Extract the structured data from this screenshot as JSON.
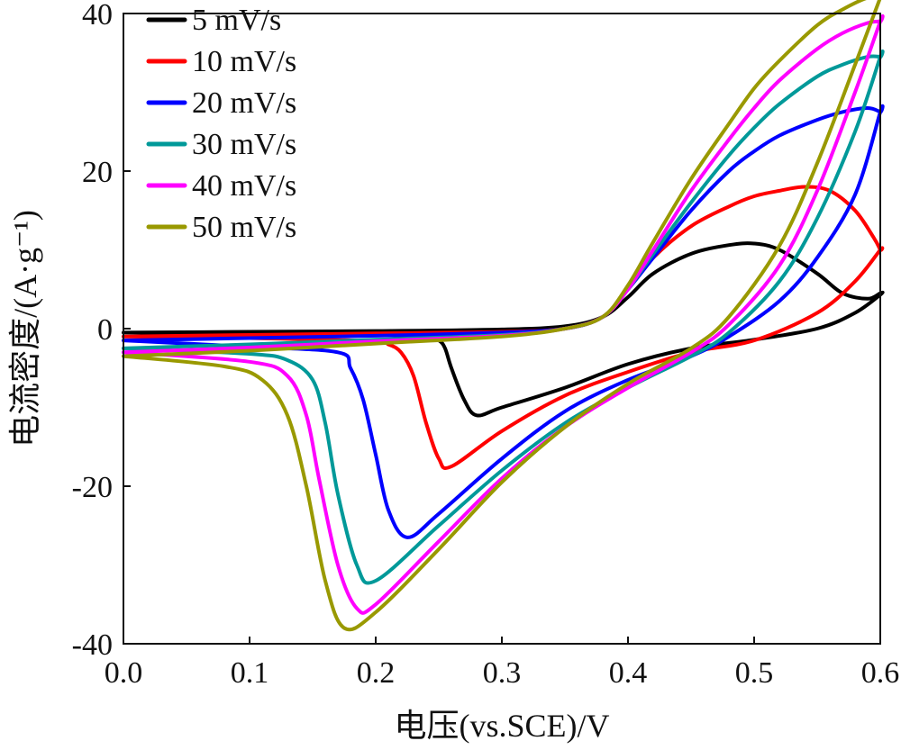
{
  "chart_data": {
    "type": "line",
    "title": "",
    "xlabel": "电压(vs.SCE)/V",
    "ylabel": "电流密度/(A·g⁻¹)",
    "xlim": [
      0.0,
      0.6
    ],
    "ylim": [
      -40,
      40
    ],
    "x_ticks": [
      "0.0",
      "0.1",
      "0.2",
      "0.3",
      "0.4",
      "0.5",
      "0.6"
    ],
    "y_ticks": [
      "-40",
      "-20",
      "0",
      "20",
      "40"
    ],
    "grid": false,
    "legend_position": "top-left",
    "series": [
      {
        "name": "5 mV/s",
        "color": "#000000",
        "x": [
          0.0,
          0.1,
          0.2,
          0.3,
          0.35,
          0.38,
          0.4,
          0.42,
          0.45,
          0.48,
          0.5,
          0.52,
          0.55,
          0.57,
          0.59,
          0.6,
          0.6,
          0.58,
          0.55,
          0.5,
          0.45,
          0.4,
          0.35,
          0.3,
          0.28,
          0.27,
          0.26,
          0.255,
          0.25,
          0.24,
          0.2,
          0.1,
          0.0
        ],
        "y": [
          -0.5,
          -0.4,
          -0.3,
          -0.1,
          0.3,
          1.5,
          4.0,
          7.0,
          9.5,
          10.6,
          10.8,
          10.0,
          7.0,
          4.5,
          3.8,
          4.5,
          4.3,
          2.0,
          0.0,
          -1.4,
          -2.5,
          -4.5,
          -7.5,
          -10.0,
          -11.0,
          -9.0,
          -5.0,
          -2.5,
          -1.5,
          -1.0,
          -0.8,
          -0.6,
          -0.5
        ]
      },
      {
        "name": "10 mV/s",
        "color": "#ff0000",
        "x": [
          0.0,
          0.1,
          0.2,
          0.3,
          0.35,
          0.38,
          0.4,
          0.42,
          0.45,
          0.48,
          0.5,
          0.52,
          0.54,
          0.56,
          0.58,
          0.595,
          0.6,
          0.6,
          0.58,
          0.55,
          0.5,
          0.45,
          0.4,
          0.35,
          0.3,
          0.26,
          0.25,
          0.24,
          0.23,
          0.22,
          0.21,
          0.2,
          0.1,
          0.0
        ],
        "y": [
          -1.0,
          -0.8,
          -0.6,
          -0.4,
          0.0,
          1.5,
          5.0,
          9.0,
          13.0,
          15.5,
          16.8,
          17.5,
          18.0,
          17.5,
          15.0,
          11.5,
          10.0,
          10.0,
          6.0,
          2.0,
          -1.5,
          -3.0,
          -5.5,
          -8.5,
          -13.0,
          -17.5,
          -16.5,
          -12.0,
          -6.0,
          -3.0,
          -2.0,
          -1.6,
          -1.2,
          -1.0
        ]
      },
      {
        "name": "20 mV/s",
        "color": "#0000ff",
        "x": [
          0.0,
          0.1,
          0.2,
          0.3,
          0.35,
          0.38,
          0.4,
          0.42,
          0.45,
          0.48,
          0.5,
          0.52,
          0.55,
          0.57,
          0.59,
          0.6,
          0.6,
          0.58,
          0.55,
          0.52,
          0.48,
          0.45,
          0.4,
          0.35,
          0.3,
          0.25,
          0.225,
          0.21,
          0.2,
          0.19,
          0.18,
          0.17,
          0.1,
          0.0
        ],
        "y": [
          -1.5,
          -1.2,
          -0.9,
          -0.5,
          0.0,
          1.5,
          5.0,
          9.0,
          15.0,
          20.0,
          22.5,
          24.5,
          26.5,
          27.5,
          28.0,
          27.5,
          27.5,
          17.0,
          9.0,
          3.5,
          -1.0,
          -3.5,
          -6.5,
          -10.5,
          -16.5,
          -23.5,
          -26.5,
          -23.0,
          -16.0,
          -9.0,
          -5.0,
          -3.0,
          -2.3,
          -1.5
        ]
      },
      {
        "name": "30 mV/s",
        "color": "#009999",
        "x": [
          0.0,
          0.1,
          0.2,
          0.3,
          0.35,
          0.38,
          0.4,
          0.42,
          0.45,
          0.48,
          0.5,
          0.52,
          0.55,
          0.57,
          0.59,
          0.6,
          0.6,
          0.58,
          0.55,
          0.52,
          0.48,
          0.45,
          0.4,
          0.35,
          0.3,
          0.25,
          0.2,
          0.185,
          0.17,
          0.16,
          0.15,
          0.13,
          0.1,
          0.0
        ],
        "y": [
          -2.5,
          -2.0,
          -1.4,
          -0.8,
          0.0,
          1.5,
          5.0,
          9.5,
          16.0,
          22.0,
          25.5,
          28.5,
          32.0,
          33.5,
          34.5,
          34.5,
          34.5,
          25.0,
          14.0,
          6.0,
          -0.5,
          -3.5,
          -7.5,
          -12.0,
          -18.0,
          -25.0,
          -32.0,
          -30.0,
          -21.0,
          -12.0,
          -6.5,
          -4.0,
          -3.2,
          -2.5
        ]
      },
      {
        "name": "40 mV/s",
        "color": "#ff00ff",
        "x": [
          0.0,
          0.1,
          0.2,
          0.3,
          0.35,
          0.38,
          0.4,
          0.42,
          0.45,
          0.48,
          0.5,
          0.52,
          0.55,
          0.57,
          0.59,
          0.6,
          0.6,
          0.58,
          0.55,
          0.52,
          0.48,
          0.45,
          0.4,
          0.35,
          0.3,
          0.25,
          0.2,
          0.185,
          0.17,
          0.155,
          0.145,
          0.13,
          0.1,
          0.0
        ],
        "y": [
          -3.0,
          -2.4,
          -1.6,
          -0.9,
          0.0,
          1.5,
          5.0,
          10.0,
          17.5,
          24.0,
          28.0,
          31.5,
          35.5,
          37.5,
          38.8,
          39.0,
          39.0,
          30.0,
          17.5,
          8.0,
          0.5,
          -3.0,
          -7.5,
          -12.5,
          -19.0,
          -27.0,
          -35.0,
          -35.5,
          -30.0,
          -19.0,
          -11.0,
          -6.0,
          -4.2,
          -3.0
        ]
      },
      {
        "name": "50 mV/s",
        "color": "#999900",
        "x": [
          0.0,
          0.1,
          0.2,
          0.3,
          0.35,
          0.38,
          0.4,
          0.42,
          0.45,
          0.48,
          0.5,
          0.52,
          0.55,
          0.57,
          0.59,
          0.6,
          0.6,
          0.58,
          0.55,
          0.52,
          0.48,
          0.45,
          0.4,
          0.35,
          0.3,
          0.25,
          0.2,
          0.175,
          0.16,
          0.145,
          0.13,
          0.11,
          0.08,
          0.0
        ],
        "y": [
          -3.5,
          -2.8,
          -1.9,
          -1.0,
          0.0,
          1.5,
          5.5,
          11.0,
          19.0,
          26.0,
          30.5,
          34.0,
          38.5,
          40.5,
          42.0,
          42.0,
          42.0,
          33.5,
          21.0,
          10.5,
          1.5,
          -2.5,
          -7.0,
          -12.5,
          -19.5,
          -28.0,
          -36.0,
          -38.0,
          -32.0,
          -20.0,
          -11.0,
          -6.5,
          -4.8,
          -3.5
        ]
      }
    ]
  }
}
